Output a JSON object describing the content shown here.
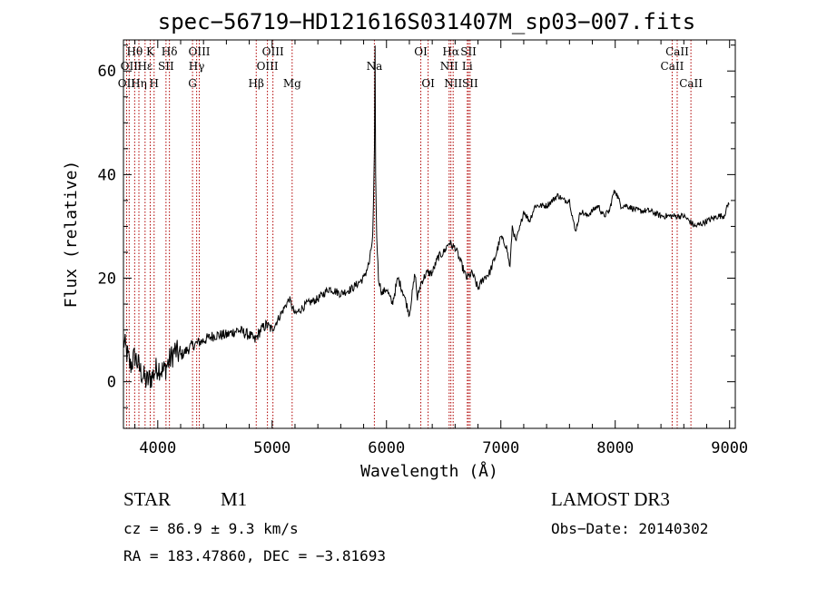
{
  "chart_data": {
    "type": "line",
    "title": "spec−56719−HD121616S031407M_sp03−007.fits",
    "xlabel": "Wavelength (Å)",
    "ylabel": "Flux (relative)",
    "xlim": [
      3700,
      9050
    ],
    "ylim": [
      -9,
      66
    ],
    "x_ticks": [
      4000,
      5000,
      6000,
      7000,
      8000,
      9000
    ],
    "y_ticks": [
      0,
      20,
      40,
      60
    ],
    "series": [
      {
        "name": "flux",
        "x": [
          3700,
          3760,
          3800,
          3850,
          3900,
          3950,
          4000,
          4050,
          4100,
          4150,
          4200,
          4300,
          4400,
          4500,
          4600,
          4700,
          4800,
          4850,
          4900,
          4950,
          5000,
          5050,
          5100,
          5150,
          5200,
          5300,
          5400,
          5500,
          5600,
          5700,
          5800,
          5850,
          5880,
          5895,
          5900,
          5905,
          5915,
          5930,
          5960,
          6000,
          6050,
          6100,
          6150,
          6200,
          6250,
          6270,
          6300,
          6350,
          6400,
          6450,
          6500,
          6550,
          6580,
          6600,
          6650,
          6700,
          6750,
          6800,
          6850,
          6900,
          6950,
          7000,
          7050,
          7080,
          7100,
          7130,
          7170,
          7200,
          7250,
          7300,
          7400,
          7500,
          7550,
          7600,
          7650,
          7700,
          7750,
          7800,
          7850,
          7900,
          7950,
          7980,
          8000,
          8050,
          8100,
          8200,
          8300,
          8400,
          8500,
          8600,
          8700,
          8800,
          8900,
          8950,
          9000
        ],
        "y": [
          8,
          3,
          5,
          2,
          0,
          1,
          3,
          2,
          4,
          6,
          5,
          7,
          8,
          9,
          9,
          10,
          9,
          8,
          10,
          11,
          10,
          12,
          14,
          16,
          13,
          15,
          16,
          18,
          17,
          18,
          20,
          23,
          28,
          45,
          65,
          40,
          28,
          20,
          17,
          18,
          15,
          20,
          17,
          13,
          21,
          16,
          19,
          21,
          21,
          24,
          25,
          27,
          26,
          26,
          23,
          20,
          21,
          18,
          20,
          21,
          24,
          28,
          26,
          22,
          30,
          27,
          30,
          33,
          31,
          34,
          34,
          36,
          35,
          35,
          29,
          33,
          32,
          33,
          34,
          32,
          33,
          36,
          37,
          34,
          34,
          33,
          33,
          32,
          32,
          32,
          30,
          31,
          32,
          32,
          35
        ]
      }
    ],
    "lines": [
      {
        "label": "OII",
        "x": 3727,
        "row": 3
      },
      {
        "label": "Hθ",
        "x": 3798,
        "row": 1
      },
      {
        "label": "OII",
        "x": 3750,
        "row": 2
      },
      {
        "label": "Hη",
        "x": 3835,
        "row": 3
      },
      {
        "label": "Hε",
        "x": 3889,
        "row": 2
      },
      {
        "label": "K",
        "x": 3934,
        "row": 1
      },
      {
        "label": "H",
        "x": 3968,
        "row": 3
      },
      {
        "label": "SII",
        "x": 4072,
        "row": 2
      },
      {
        "label": "Hδ",
        "x": 4102,
        "row": 1
      },
      {
        "label": "G",
        "x": 4304,
        "row": 3
      },
      {
        "label": "Hγ",
        "x": 4340,
        "row": 2
      },
      {
        "label": "OIII",
        "x": 4363,
        "row": 1
      },
      {
        "label": "Hβ",
        "x": 4861,
        "row": 3
      },
      {
        "label": "OIII",
        "x": 4959,
        "row": 2
      },
      {
        "label": "OIII",
        "x": 5007,
        "row": 1
      },
      {
        "label": "Mg",
        "x": 5175,
        "row": 3
      },
      {
        "label": "Na",
        "x": 5894,
        "row": 2
      },
      {
        "label": "OI",
        "x": 6300,
        "row": 1
      },
      {
        "label": "OI",
        "x": 6364,
        "row": 3
      },
      {
        "label": "NII",
        "x": 6548,
        "row": 2
      },
      {
        "label": "Hα",
        "x": 6563,
        "row": 1
      },
      {
        "label": "NII",
        "x": 6583,
        "row": 3
      },
      {
        "label": "Li",
        "x": 6707,
        "row": 2
      },
      {
        "label": "SII",
        "x": 6717,
        "row": 1
      },
      {
        "label": "SII",
        "x": 6731,
        "row": 3
      },
      {
        "label": "CaII",
        "x": 8498,
        "row": 2
      },
      {
        "label": "CaII",
        "x": 8542,
        "row": 1
      },
      {
        "label": "CaII",
        "x": 8662,
        "row": 3
      }
    ]
  },
  "info": {
    "class": "STAR",
    "subclass": "M1",
    "survey": "LAMOST DR3",
    "cz": "cz = 86.9 ± 9.3 km/s",
    "obs_date": "Obs−Date: 20140302",
    "radec": "RA = 183.47860, DEC =  −3.81693"
  }
}
